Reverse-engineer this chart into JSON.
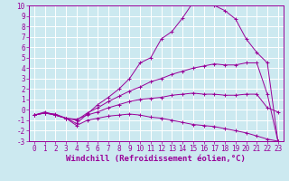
{
  "background_color": "#cce9f0",
  "line_color": "#990099",
  "grid_color": "#ffffff",
  "xlim": [
    -0.5,
    23.5
  ],
  "ylim": [
    -3,
    10
  ],
  "xlabel": "Windchill (Refroidissement éolien,°C)",
  "xlabel_fontsize": 6.5,
  "xticks": [
    0,
    1,
    2,
    3,
    4,
    5,
    6,
    7,
    8,
    9,
    10,
    11,
    12,
    13,
    14,
    15,
    16,
    17,
    18,
    19,
    20,
    21,
    22,
    23
  ],
  "yticks": [
    -3,
    -2,
    -1,
    0,
    1,
    2,
    3,
    4,
    5,
    6,
    7,
    8,
    9,
    10
  ],
  "tick_fontsize": 5.5,
  "series": [
    {
      "x": [
        0,
        1,
        2,
        3,
        4,
        5,
        6,
        7,
        8,
        9,
        10,
        11,
        12,
        13,
        14,
        15,
        16,
        17,
        18,
        19,
        20,
        21,
        22,
        23
      ],
      "y": [
        -0.5,
        -0.3,
        -0.4,
        -0.8,
        -1.3,
        -0.4,
        0.5,
        1.2,
        2.0,
        3.0,
        4.5,
        5.0,
        6.8,
        7.5,
        8.8,
        10.3,
        10.5,
        10.0,
        9.5,
        8.7,
        6.8,
        5.5,
        4.5,
        -3.0
      ]
    },
    {
      "x": [
        0,
        1,
        2,
        3,
        4,
        5,
        6,
        7,
        8,
        9,
        10,
        11,
        12,
        13,
        14,
        15,
        16,
        17,
        18,
        19,
        20,
        21,
        22,
        23
      ],
      "y": [
        -0.5,
        -0.2,
        -0.5,
        -0.8,
        -1.0,
        -0.3,
        0.2,
        0.8,
        1.3,
        1.8,
        2.2,
        2.7,
        3.0,
        3.4,
        3.7,
        4.0,
        4.2,
        4.4,
        4.3,
        4.3,
        4.5,
        4.5,
        1.5,
        -3.0
      ]
    },
    {
      "x": [
        0,
        1,
        2,
        3,
        4,
        5,
        6,
        7,
        8,
        9,
        10,
        11,
        12,
        13,
        14,
        15,
        16,
        17,
        18,
        19,
        20,
        21,
        22,
        23
      ],
      "y": [
        -0.5,
        -0.3,
        -0.5,
        -0.8,
        -0.9,
        -0.5,
        -0.2,
        0.2,
        0.5,
        0.8,
        1.0,
        1.1,
        1.2,
        1.4,
        1.5,
        1.6,
        1.5,
        1.5,
        1.4,
        1.4,
        1.5,
        1.5,
        0.2,
        -0.2
      ]
    },
    {
      "x": [
        0,
        1,
        2,
        3,
        4,
        5,
        6,
        7,
        8,
        9,
        10,
        11,
        12,
        13,
        14,
        15,
        16,
        17,
        18,
        19,
        20,
        21,
        22,
        23
      ],
      "y": [
        -0.5,
        -0.3,
        -0.5,
        -0.8,
        -1.5,
        -1.0,
        -0.8,
        -0.6,
        -0.5,
        -0.4,
        -0.5,
        -0.7,
        -0.8,
        -1.0,
        -1.2,
        -1.4,
        -1.5,
        -1.6,
        -1.8,
        -2.0,
        -2.2,
        -2.5,
        -2.8,
        -3.0
      ]
    }
  ],
  "marker": "+"
}
